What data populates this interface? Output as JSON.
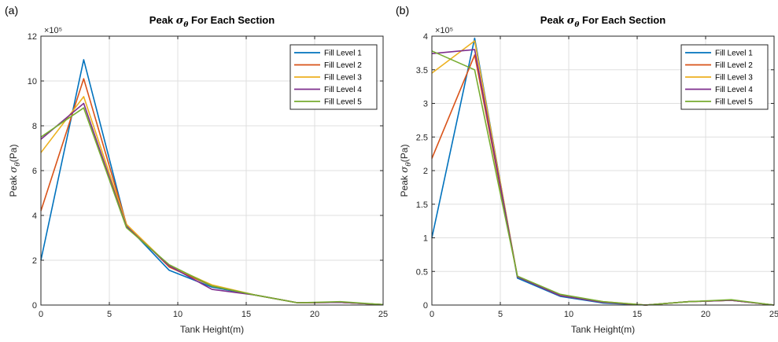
{
  "chart_data": [
    {
      "type": "line",
      "panel_label": "(a)",
      "title": "Peak σθ For Each Section",
      "title_parts": {
        "prefix": "Peak ",
        "symbol": "σ",
        "subscript": "θ",
        "suffix": " For Each Section"
      },
      "xlabel": "Tank Height(m)",
      "ylabel": "Peak σθ(Pa)",
      "ylabel_parts": {
        "prefix": "Peak ",
        "symbol": "σ",
        "subscript": "θ",
        "suffix": "(Pa)"
      },
      "exponent_label": "×10⁵",
      "xlim": [
        0,
        25
      ],
      "ylim": [
        0,
        12
      ],
      "xticks": [
        0,
        5,
        10,
        15,
        20,
        25
      ],
      "yticks": [
        0,
        2,
        4,
        6,
        8,
        10,
        12
      ],
      "grid": true,
      "legend_position": "top-right",
      "x": [
        0,
        3.125,
        6.25,
        9.375,
        12.5,
        15.625,
        18.75,
        21.875,
        25
      ],
      "series": [
        {
          "name": "Fill Level 1",
          "color": "#0072BD",
          "values": [
            2.0,
            10.95,
            3.55,
            1.55,
            0.8,
            0.45,
            0.1,
            0.12,
            0.02
          ]
        },
        {
          "name": "Fill Level 2",
          "color": "#D95319",
          "values": [
            4.2,
            10.1,
            3.6,
            1.7,
            0.85,
            0.45,
            0.1,
            0.12,
            0.02
          ]
        },
        {
          "name": "Fill Level 3",
          "color": "#EDB120",
          "values": [
            6.8,
            9.3,
            3.6,
            1.75,
            0.9,
            0.45,
            0.1,
            0.12,
            0.02
          ]
        },
        {
          "name": "Fill Level 4",
          "color": "#7E2F8E",
          "values": [
            7.4,
            9.0,
            3.5,
            1.75,
            0.7,
            0.45,
            0.1,
            0.12,
            0.02
          ]
        },
        {
          "name": "Fill Level 5",
          "color": "#77AC30",
          "values": [
            7.5,
            8.8,
            3.45,
            1.8,
            0.85,
            0.45,
            0.1,
            0.15,
            0.02
          ]
        }
      ]
    },
    {
      "type": "line",
      "panel_label": "(b)",
      "title": "Peak σθ For Each Section",
      "title_parts": {
        "prefix": "Peak ",
        "symbol": "σ",
        "subscript": "θ",
        "suffix": " For Each Section"
      },
      "xlabel": "Tank Height(m)",
      "ylabel": "Peak σθ(Pa)",
      "ylabel_parts": {
        "prefix": "Peak ",
        "symbol": "σ",
        "subscript": "θ",
        "suffix": "(Pa)"
      },
      "exponent_label": "×10⁵",
      "xlim": [
        0,
        25
      ],
      "ylim": [
        0,
        4
      ],
      "xticks": [
        0,
        5,
        10,
        15,
        20,
        25
      ],
      "yticks": [
        0,
        0.5,
        1,
        1.5,
        2,
        2.5,
        3,
        3.5,
        4
      ],
      "grid": true,
      "legend_position": "top-right",
      "x": [
        0,
        3.125,
        6.25,
        9.375,
        12.5,
        15.625,
        18.75,
        21.875,
        25
      ],
      "series": [
        {
          "name": "Fill Level 1",
          "color": "#0072BD",
          "values": [
            1.0,
            3.97,
            0.4,
            0.13,
            0.03,
            0.0,
            0.05,
            0.07,
            0.0
          ]
        },
        {
          "name": "Fill Level 2",
          "color": "#D95319",
          "values": [
            2.18,
            3.72,
            0.42,
            0.14,
            0.04,
            0.0,
            0.05,
            0.07,
            0.0
          ]
        },
        {
          "name": "Fill Level 3",
          "color": "#EDB120",
          "values": [
            3.45,
            3.93,
            0.42,
            0.15,
            0.05,
            0.0,
            0.05,
            0.07,
            0.0
          ]
        },
        {
          "name": "Fill Level 4",
          "color": "#7E2F8E",
          "values": [
            3.74,
            3.8,
            0.42,
            0.14,
            0.04,
            0.0,
            0.05,
            0.07,
            0.0
          ]
        },
        {
          "name": "Fill Level 5",
          "color": "#77AC30",
          "values": [
            3.78,
            3.5,
            0.43,
            0.16,
            0.05,
            0.0,
            0.05,
            0.08,
            0.0
          ]
        }
      ]
    }
  ]
}
